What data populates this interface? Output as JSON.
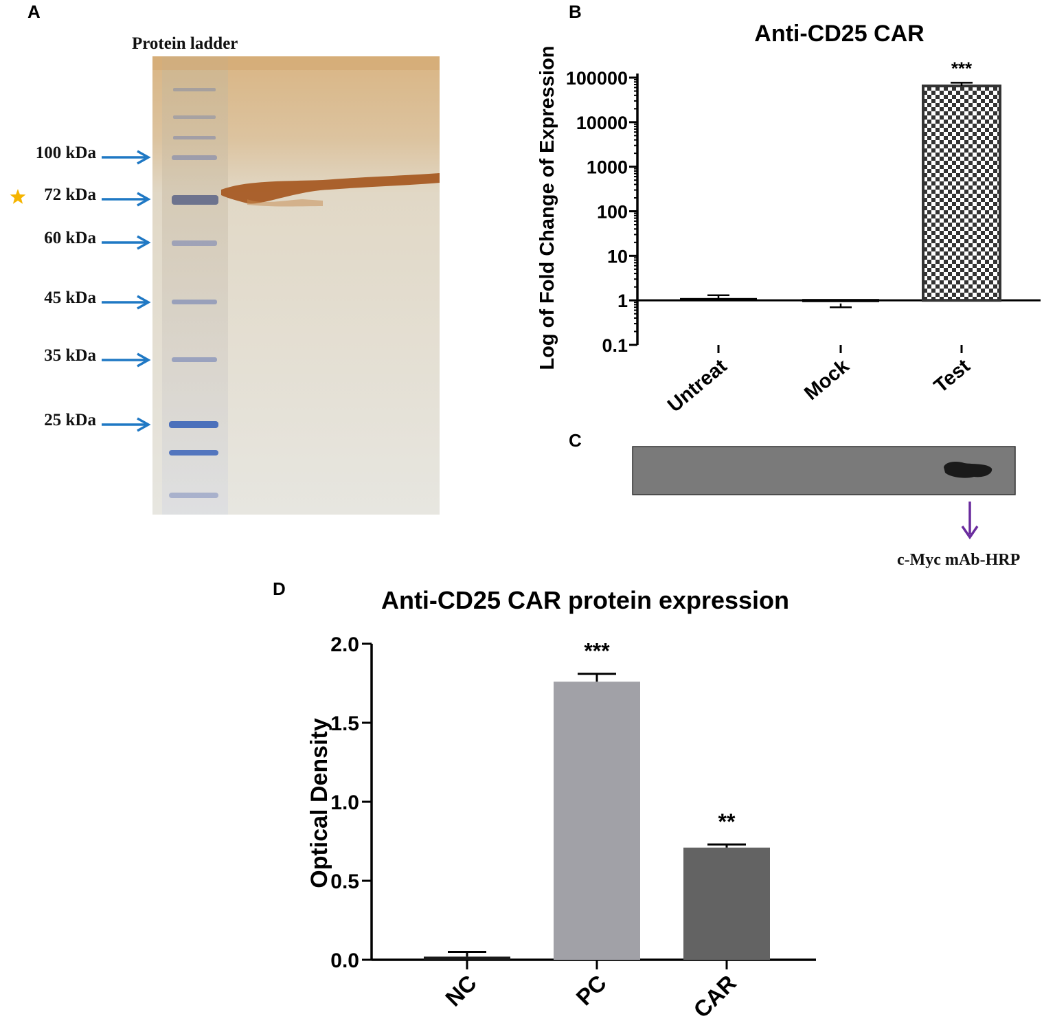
{
  "panels": {
    "a": {
      "letter": "A",
      "ladder_label": "Protein ladder",
      "markers": [
        {
          "label": "100 kDa",
          "starred": false
        },
        {
          "label": "72 kDa",
          "starred": true
        },
        {
          "label": "60 kDa",
          "starred": false
        },
        {
          "label": "45 kDa",
          "starred": false
        },
        {
          "label": "35 kDa",
          "starred": false
        },
        {
          "label": "25 kDa",
          "starred": false
        }
      ],
      "colors": {
        "arrow": "#1f78c4",
        "star": "#f5b400",
        "band": "#a4541c",
        "ladder": "#5a6fb0"
      }
    },
    "b": {
      "letter": "B"
    },
    "c": {
      "letter": "C",
      "annotation": "c-Myc mAb-HRP",
      "colors": {
        "arrow": "#6a2c9e",
        "membrane": "#7a7a7a",
        "band": "#1a1a1a"
      }
    },
    "d": {
      "letter": "D"
    }
  },
  "chart_data": [
    {
      "type": "bar",
      "title": "Anti-CD25 CAR",
      "xlabel": "",
      "ylabel": "Log of Fold Change of Expression",
      "yscale": "log",
      "ylim": [
        0.1,
        100000
      ],
      "yticks": [
        "0.1",
        "1",
        "10",
        "100",
        "1000",
        "10000",
        "100000"
      ],
      "baseline": 1,
      "categories": [
        "Untreat",
        "Mock",
        "Test"
      ],
      "values": [
        1.05,
        0.85,
        65000
      ],
      "errors": [
        0.25,
        0.15,
        12000
      ],
      "significance": [
        "",
        "",
        "***"
      ],
      "colors": {
        "Untreat": "#000000",
        "Mock": "#000000",
        "Test": "checkerboard"
      },
      "grid": false
    },
    {
      "type": "bar",
      "title": "Anti-CD25 CAR protein expression",
      "xlabel": "",
      "ylabel": "Optical Density",
      "ylim": [
        0,
        2.0
      ],
      "yticks": [
        "0.0",
        "0.5",
        "1.0",
        "1.5",
        "2.0"
      ],
      "categories": [
        "NC",
        "PC",
        "CAR"
      ],
      "values": [
        0.02,
        1.76,
        0.71
      ],
      "errors": [
        0.03,
        0.05,
        0.02
      ],
      "significance": [
        "",
        "***",
        "**"
      ],
      "colors": {
        "NC": "#1a1a1a",
        "PC": "#a1a1a7",
        "CAR": "#636363"
      },
      "grid": false
    }
  ]
}
